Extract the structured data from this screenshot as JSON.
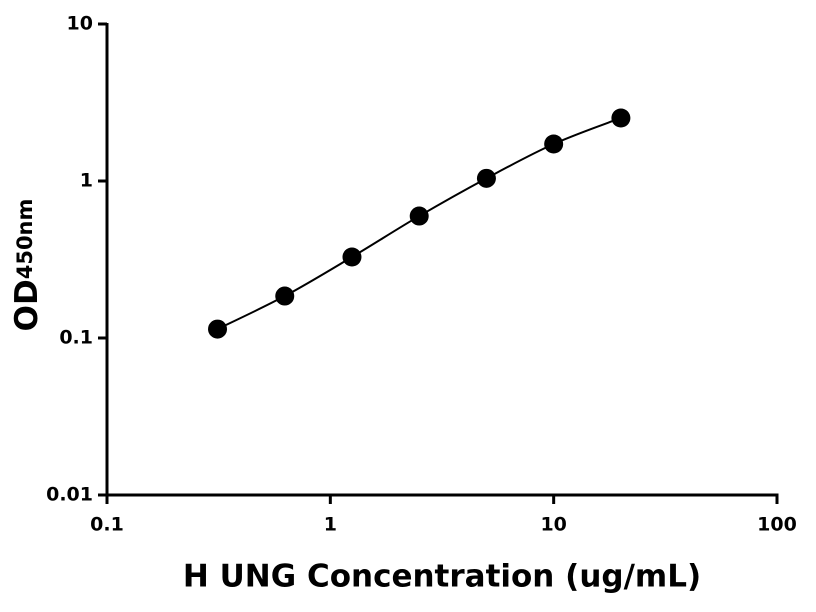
{
  "chart_data": {
    "type": "scatter",
    "xlabel": "H UNG Concentration (ug/mL)",
    "ylabel": "OD",
    "ylabel_sub": "450nm",
    "x": [
      0.3125,
      0.625,
      1.25,
      2.5,
      5,
      10,
      20
    ],
    "values": [
      0.114,
      0.185,
      0.328,
      0.598,
      1.04,
      1.72,
      2.52
    ],
    "color": "#000000",
    "fit_line": true,
    "xlog": true,
    "ylog": true,
    "xlim": [
      0.1,
      100
    ],
    "ylim": [
      0.01,
      10
    ],
    "xticks": [
      0.1,
      1,
      10,
      100
    ],
    "yticks": [
      0.01,
      0.1,
      1,
      10
    ]
  }
}
